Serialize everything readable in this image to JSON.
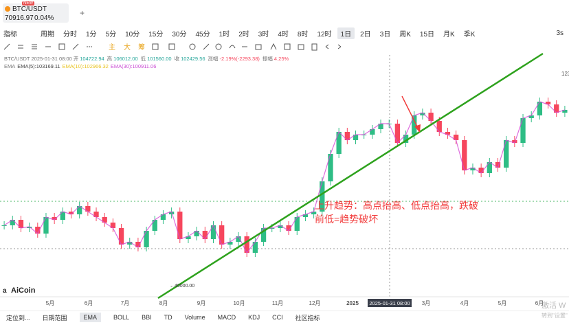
{
  "tab": {
    "symbol": "BTC/USDT",
    "price": "70916.97",
    "change": "0.04%",
    "badge": "NEW",
    "add": "+"
  },
  "toolbar": {
    "indicator": "指标",
    "period": "周期",
    "intervals": [
      "分时",
      "1分",
      "5分",
      "10分",
      "15分",
      "30分",
      "45分",
      "1时",
      "2时",
      "3时",
      "4时",
      "8时",
      "12时",
      "1日",
      "2日",
      "3日",
      "周K",
      "15日",
      "月K",
      "季K"
    ],
    "active": "1日",
    "refresh": "3s"
  },
  "tools": {
    "main": "主",
    "big": "大",
    "chips": "筹"
  },
  "info": {
    "line1": [
      "BTC/USDT",
      "2025-01-31 08:00",
      "开",
      "104722.94",
      "高",
      "106012.00",
      "低",
      "101560.00",
      "收",
      "102429.56",
      "涨幅",
      "-2.19%(-2293.38)",
      "振幅",
      "4.25%"
    ],
    "line2": [
      "EMA",
      "EMA(5):103169.11",
      "EMA(10):102966.32",
      "EMA(30):100911.06"
    ]
  },
  "chart": {
    "ylim": [
      38000,
      126000
    ],
    "closes": [
      64000,
      66000,
      63000,
      63500,
      61000,
      67000,
      66000,
      69000,
      68000,
      71000,
      69000,
      67000,
      65000,
      63000,
      57000,
      58000,
      56000,
      62000,
      66000,
      68000,
      69000,
      59000,
      60000,
      62000,
      59000,
      64000,
      57000,
      58000,
      60000,
      54000,
      58000,
      63000,
      63000,
      64000,
      62000,
      67000,
      68000,
      69000,
      80000,
      90000,
      98000,
      95000,
      97000,
      97000,
      99000,
      101000,
      101000,
      94000,
      97000,
      104000,
      105000,
      102000,
      98000,
      97000,
      95000,
      84000,
      85000,
      83000,
      87000,
      85000,
      95000,
      94000,
      103000,
      104000,
      109000,
      108000,
      105000,
      106000
    ],
    "axis_hint": "123",
    "low_label": "←40000.00",
    "annotation": [
      "上升趋势：高点抬高、低点抬高，跌破",
      "前低=趋势破坏"
    ],
    "xlabels": [
      "5月",
      "6月",
      "7月",
      "8月",
      "9月",
      "10月",
      "11月",
      "12月",
      "2025",
      "3月",
      "4月",
      "5月",
      "6月"
    ],
    "cursor_label": "2025-01-31 08:00",
    "logo": "AiCoin"
  },
  "bottom": {
    "items": [
      "定位到...",
      "日期范围",
      "EMA",
      "BOLL",
      "BBI",
      "TD",
      "Volume",
      "MACD",
      "KDJ",
      "CCI",
      "社区指标"
    ],
    "active": "EMA"
  },
  "watermark": [
    "激活 W",
    "转到\"设置\""
  ]
}
